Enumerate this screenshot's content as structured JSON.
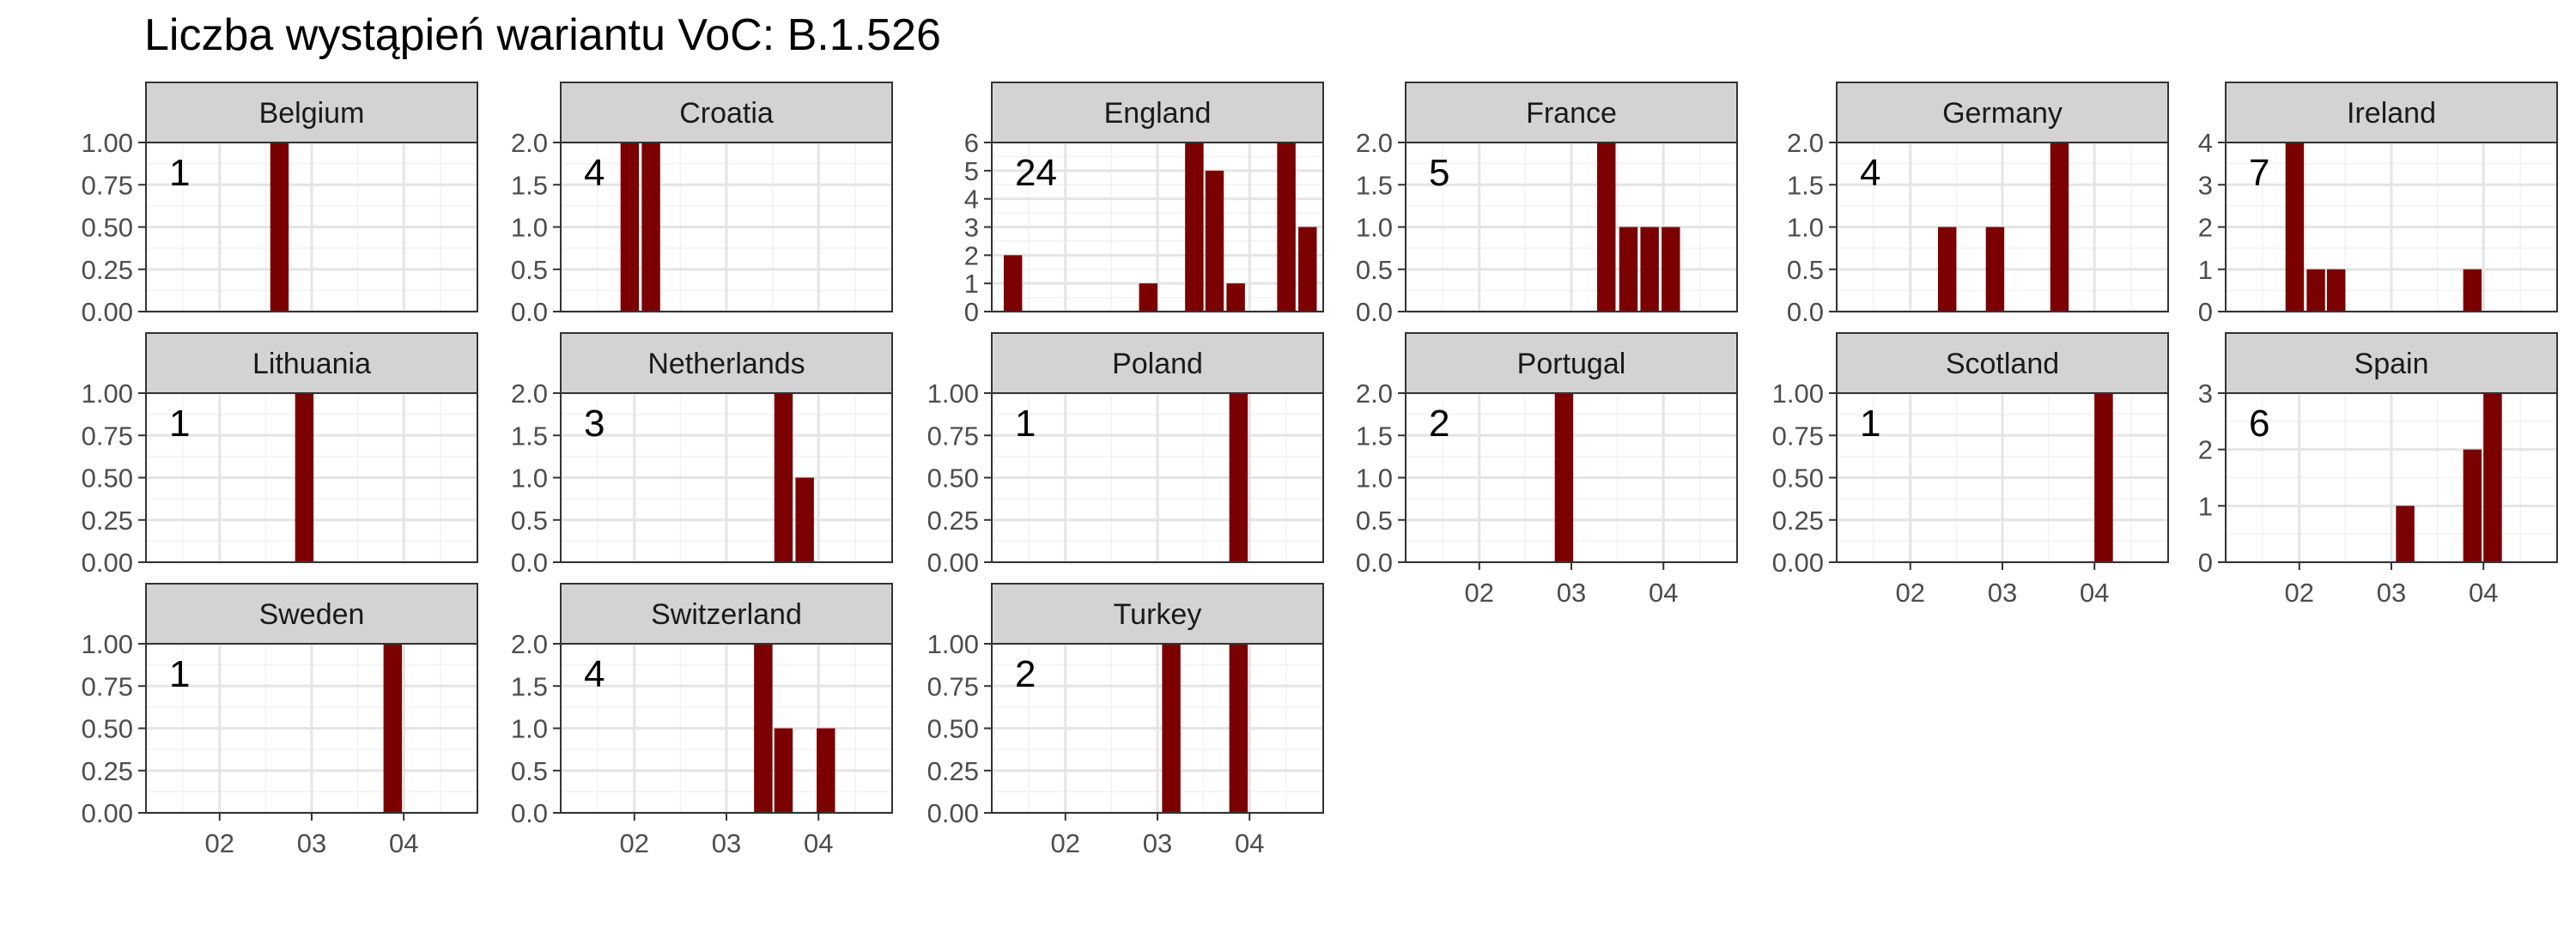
{
  "colors": {
    "bar": "#7B0000",
    "strip_fill": "#D3D3D3",
    "panel_border": "#333333",
    "grid_major": "#E5E5E5",
    "grid_minor": "#F2F2F2",
    "text": "#000000",
    "tick_text": "#4D4D4D"
  },
  "chart_data": {
    "type": "bar",
    "title": "Liczba wystąpień wariantu VoC: B.1.526",
    "xlabel": "",
    "ylabel": "",
    "facet_layout": {
      "columns": 6,
      "rows": 3
    },
    "x_domain": [
      1.2,
      4.8
    ],
    "x_ticks": [
      2,
      3,
      4
    ],
    "x_tick_labels": [
      "02",
      "03",
      "04"
    ],
    "bar_width": 0.2,
    "grid": true,
    "panels": [
      {
        "name": "Belgium",
        "total": "1",
        "ylim": [
          0,
          1
        ],
        "y_ticks": [
          "0.00",
          "0.25",
          "0.50",
          "0.75",
          "1.00"
        ],
        "bars": [
          {
            "x": 2.65,
            "value": 1
          }
        ]
      },
      {
        "name": "Croatia",
        "total": "4",
        "ylim": [
          0,
          2
        ],
        "y_ticks": [
          "0.0",
          "0.5",
          "1.0",
          "1.5",
          "2.0"
        ],
        "bars": [
          {
            "x": 1.95,
            "value": 2
          },
          {
            "x": 2.18,
            "value": 2
          }
        ]
      },
      {
        "name": "England",
        "total": "24",
        "ylim": [
          0,
          6
        ],
        "y_ticks": [
          "0",
          "1",
          "2",
          "3",
          "4",
          "5",
          "6"
        ],
        "bars": [
          {
            "x": 1.43,
            "value": 2
          },
          {
            "x": 2.9,
            "value": 1
          },
          {
            "x": 3.4,
            "value": 6
          },
          {
            "x": 3.62,
            "value": 5
          },
          {
            "x": 3.85,
            "value": 1
          },
          {
            "x": 4.4,
            "value": 6
          },
          {
            "x": 4.63,
            "value": 3
          }
        ]
      },
      {
        "name": "France",
        "total": "5",
        "ylim": [
          0,
          2
        ],
        "y_ticks": [
          "0.0",
          "0.5",
          "1.0",
          "1.5",
          "2.0"
        ],
        "bars": [
          {
            "x": 3.38,
            "value": 2
          },
          {
            "x": 3.62,
            "value": 1
          },
          {
            "x": 3.85,
            "value": 1
          },
          {
            "x": 4.08,
            "value": 1
          }
        ]
      },
      {
        "name": "Germany",
        "total": "4",
        "ylim": [
          0,
          2
        ],
        "y_ticks": [
          "0.0",
          "0.5",
          "1.0",
          "1.5",
          "2.0"
        ],
        "bars": [
          {
            "x": 2.4,
            "value": 1
          },
          {
            "x": 2.92,
            "value": 1
          },
          {
            "x": 3.62,
            "value": 2
          }
        ]
      },
      {
        "name": "Ireland",
        "total": "7",
        "ylim": [
          0,
          4
        ],
        "y_ticks": [
          "0",
          "1",
          "2",
          "3",
          "4"
        ],
        "bars": [
          {
            "x": 1.95,
            "value": 4
          },
          {
            "x": 2.18,
            "value": 1
          },
          {
            "x": 2.4,
            "value": 1
          },
          {
            "x": 3.88,
            "value": 1
          }
        ]
      },
      {
        "name": "Lithuania",
        "total": "1",
        "ylim": [
          0,
          1
        ],
        "y_ticks": [
          "0.00",
          "0.25",
          "0.50",
          "0.75",
          "1.00"
        ],
        "bars": [
          {
            "x": 2.92,
            "value": 1
          }
        ]
      },
      {
        "name": "Netherlands",
        "total": "3",
        "ylim": [
          0,
          2
        ],
        "y_ticks": [
          "0.0",
          "0.5",
          "1.0",
          "1.5",
          "2.0"
        ],
        "bars": [
          {
            "x": 3.62,
            "value": 2
          },
          {
            "x": 3.85,
            "value": 1
          }
        ]
      },
      {
        "name": "Poland",
        "total": "1",
        "ylim": [
          0,
          1
        ],
        "y_ticks": [
          "0.00",
          "0.25",
          "0.50",
          "0.75",
          "1.00"
        ],
        "bars": [
          {
            "x": 3.88,
            "value": 1
          }
        ]
      },
      {
        "name": "Portugal",
        "total": "2",
        "ylim": [
          0,
          2
        ],
        "y_ticks": [
          "0.0",
          "0.5",
          "1.0",
          "1.5",
          "2.0"
        ],
        "bars": [
          {
            "x": 2.92,
            "value": 2
          }
        ]
      },
      {
        "name": "Scotland",
        "total": "1",
        "ylim": [
          0,
          1
        ],
        "y_ticks": [
          "0.00",
          "0.25",
          "0.50",
          "0.75",
          "1.00"
        ],
        "bars": [
          {
            "x": 4.1,
            "value": 1
          }
        ]
      },
      {
        "name": "Spain",
        "total": "6",
        "ylim": [
          0,
          3
        ],
        "y_ticks": [
          "0",
          "1",
          "2",
          "3"
        ],
        "bars": [
          {
            "x": 3.15,
            "value": 1
          },
          {
            "x": 3.88,
            "value": 2
          },
          {
            "x": 4.1,
            "value": 3
          }
        ]
      },
      {
        "name": "Sweden",
        "total": "1",
        "ylim": [
          0,
          1
        ],
        "y_ticks": [
          "0.00",
          "0.25",
          "0.50",
          "0.75",
          "1.00"
        ],
        "bars": [
          {
            "x": 3.88,
            "value": 1
          }
        ]
      },
      {
        "name": "Switzerland",
        "total": "4",
        "ylim": [
          0,
          2
        ],
        "y_ticks": [
          "0.0",
          "0.5",
          "1.0",
          "1.5",
          "2.0"
        ],
        "bars": [
          {
            "x": 3.4,
            "value": 2
          },
          {
            "x": 3.62,
            "value": 1
          },
          {
            "x": 4.08,
            "value": 1
          }
        ]
      },
      {
        "name": "Turkey",
        "total": "2",
        "ylim": [
          0,
          1
        ],
        "y_ticks": [
          "0.00",
          "0.25",
          "0.50",
          "0.75",
          "1.00"
        ],
        "bars": [
          {
            "x": 3.15,
            "value": 1
          },
          {
            "x": 3.88,
            "value": 1
          }
        ]
      }
    ]
  }
}
